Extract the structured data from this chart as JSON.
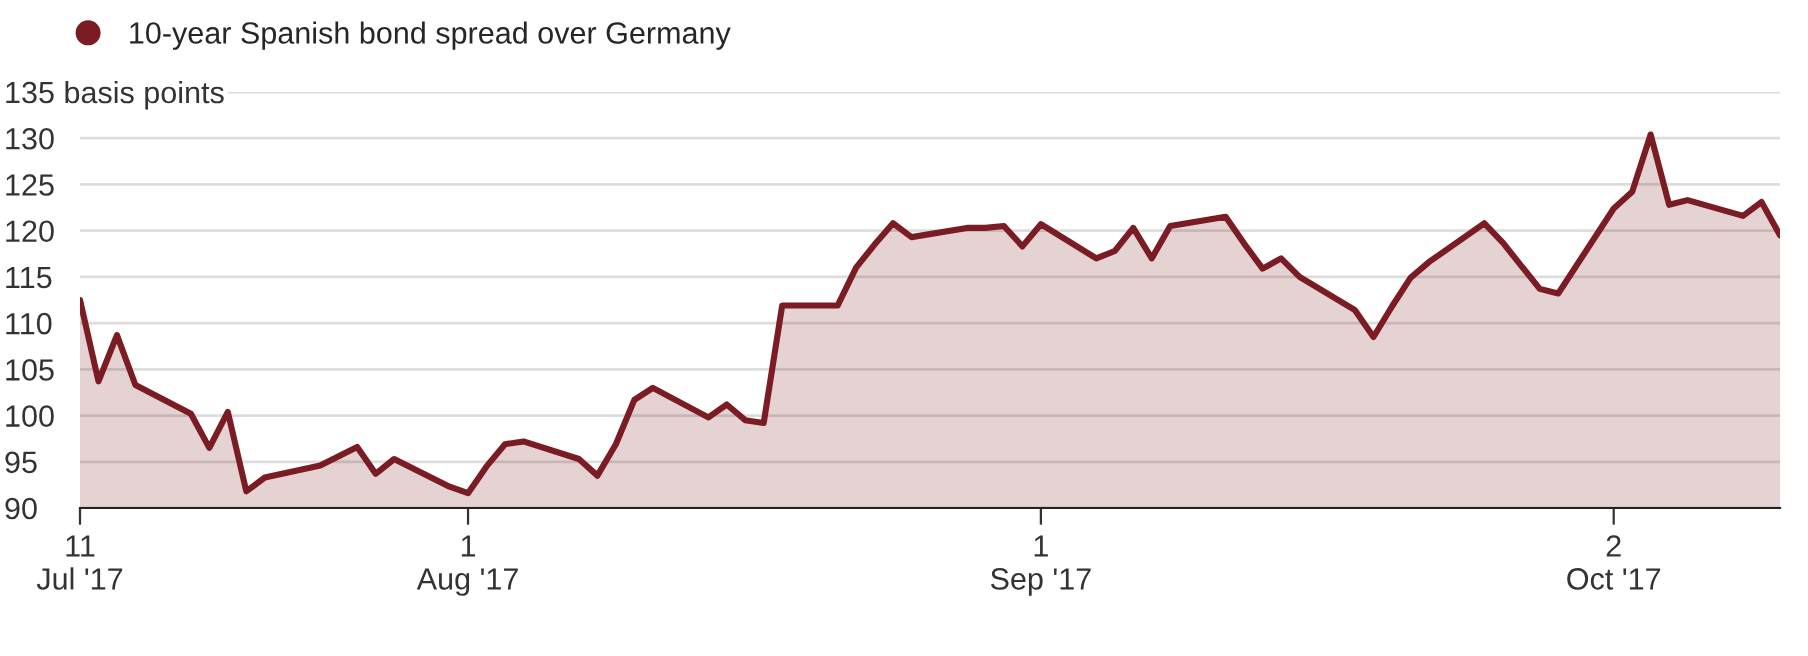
{
  "chart_data": {
    "type": "area",
    "x": [
      "2017-07-11",
      "2017-07-12",
      "2017-07-13",
      "2017-07-14",
      "2017-07-17",
      "2017-07-18",
      "2017-07-19",
      "2017-07-20",
      "2017-07-21",
      "2017-07-24",
      "2017-07-25",
      "2017-07-26",
      "2017-07-27",
      "2017-07-28",
      "2017-07-31",
      "2017-08-01",
      "2017-08-02",
      "2017-08-03",
      "2017-08-04",
      "2017-08-07",
      "2017-08-08",
      "2017-08-09",
      "2017-08-10",
      "2017-08-11",
      "2017-08-14",
      "2017-08-15",
      "2017-08-16",
      "2017-08-17",
      "2017-08-18",
      "2017-08-21",
      "2017-08-22",
      "2017-08-23",
      "2017-08-24",
      "2017-08-25",
      "2017-08-28",
      "2017-08-29",
      "2017-08-30",
      "2017-08-31",
      "2017-09-01",
      "2017-09-04",
      "2017-09-05",
      "2017-09-06",
      "2017-09-07",
      "2017-09-08",
      "2017-09-11",
      "2017-09-12",
      "2017-09-13",
      "2017-09-14",
      "2017-09-15",
      "2017-09-18",
      "2017-09-19",
      "2017-09-20",
      "2017-09-21",
      "2017-09-22",
      "2017-09-25",
      "2017-09-26",
      "2017-09-27",
      "2017-09-28",
      "2017-09-29",
      "2017-10-02",
      "2017-10-03",
      "2017-10-04",
      "2017-10-05",
      "2017-10-06",
      "2017-10-09",
      "2017-10-10",
      "2017-10-11"
    ],
    "series": [
      {
        "name": "10-year Spanish bond spread over Germany",
        "color": "#7b1c24",
        "values": [
          112.5,
          103.7,
          108.7,
          103.3,
          100.2,
          96.5,
          100.4,
          91.8,
          93.3,
          94.6,
          95.6,
          96.6,
          93.7,
          95.3,
          92.3,
          91.6,
          94.5,
          96.9,
          97.2,
          95.3,
          93.5,
          96.9,
          101.7,
          103.0,
          99.8,
          101.2,
          99.5,
          99.2,
          111.9,
          111.9,
          116.0,
          118.5,
          120.8,
          119.3,
          120.3,
          120.3,
          120.5,
          118.3,
          120.7,
          117.0,
          117.8,
          120.3,
          117.0,
          120.5,
          121.5,
          118.6,
          115.9,
          117.0,
          115.0,
          111.4,
          108.5,
          111.8,
          114.9,
          116.6,
          120.8,
          118.7,
          116.2,
          113.7,
          113.2,
          122.4,
          124.2,
          130.4,
          122.8,
          123.3,
          121.6,
          123.1,
          119.5
        ]
      }
    ],
    "xlim": [
      "2017-07-11",
      "2017-10-11"
    ],
    "xticks": [
      {
        "value": "2017-07-11",
        "label": "11\nJul '17"
      },
      {
        "value": "2017-08-01",
        "label": "1\nAug '17"
      },
      {
        "value": "2017-09-01",
        "label": "1\nSep '17"
      },
      {
        "value": "2017-10-02",
        "label": "2\nOct '17"
      }
    ],
    "ylim": [
      90,
      135
    ],
    "yticks": [
      90,
      95,
      100,
      105,
      110,
      115,
      120,
      125,
      130,
      {
        "value": 135,
        "label": "135 basis points"
      }
    ],
    "grid": "y",
    "legend": "top left"
  }
}
